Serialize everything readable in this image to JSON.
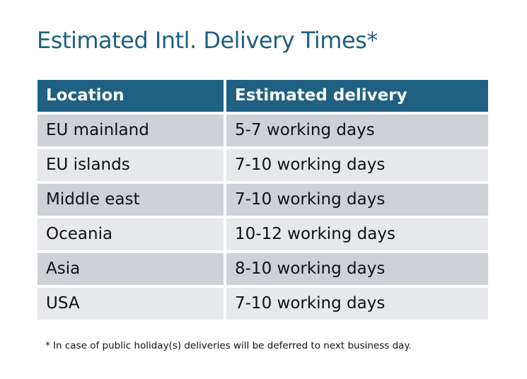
{
  "title": "Estimated Intl. Delivery Times*",
  "table": {
    "headers": [
      "Location",
      "Estimated delivery"
    ],
    "rows": [
      [
        "EU mainland",
        "5-7 working days"
      ],
      [
        "EU islands",
        "7-10 working days"
      ],
      [
        "Middle east",
        "7-10 working days"
      ],
      [
        "Oceania",
        "10-12 working days"
      ],
      [
        "Asia",
        "8-10 working days"
      ],
      [
        "USA",
        "7-10 working days"
      ]
    ]
  },
  "footnote": "* In case of public holiday(s) deliveries will be deferred to next business day.",
  "colors": {
    "title": "#1f5f80",
    "header": "#206082",
    "row_dark": "#cdd1d8",
    "row_light": "#e6e8eb"
  }
}
